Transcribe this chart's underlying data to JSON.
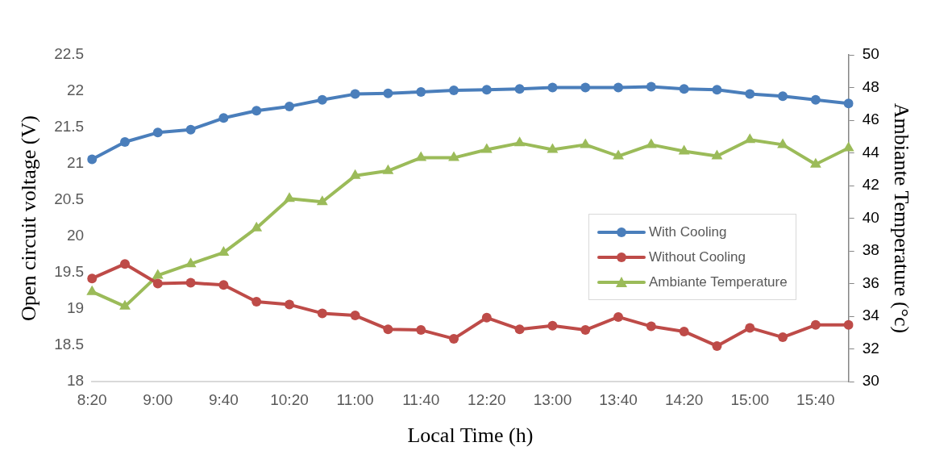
{
  "chart_data": {
    "type": "line",
    "xlabel": "Local Time (h)",
    "ylabel": "Open circuit voltage (V)",
    "y2label": "Ambiante Temperature (°c)",
    "categories": [
      "8:20",
      null,
      "9:00",
      null,
      "9:40",
      null,
      "10:20",
      null,
      "11:00",
      null,
      "11:40",
      null,
      "12:20",
      null,
      "13:00",
      null,
      "13:40",
      null,
      "14:20",
      null,
      "15:00",
      null,
      "15:40",
      null
    ],
    "series": [
      {
        "name": "With Cooling",
        "color": "#4a7ebb",
        "marker": "circle",
        "values": [
          21.06,
          21.3,
          21.43,
          21.47,
          21.63,
          21.73,
          21.79,
          21.88,
          21.96,
          21.97,
          21.99,
          22.01,
          22.02,
          22.03,
          22.05,
          22.05,
          22.05,
          22.06,
          22.03,
          22.02,
          21.96,
          21.93,
          21.88,
          21.83
        ]
      },
      {
        "name": "Without Cooling",
        "color": "#be4b48",
        "marker": "circle",
        "values": [
          19.42,
          19.62,
          19.35,
          19.36,
          19.33,
          19.1,
          19.06,
          18.94,
          18.91,
          18.72,
          18.71,
          18.59,
          18.88,
          18.72,
          18.77,
          18.71,
          18.89,
          18.76,
          18.69,
          18.49,
          18.74,
          18.61,
          18.78,
          18.78
        ]
      },
      {
        "name": "Ambiante Temperature",
        "color": "#9bbb59",
        "marker": "triangle",
        "axis": "y2",
        "values": [
          35.5,
          34.6,
          36.5,
          37.2,
          37.9,
          39.4,
          41.2,
          41.0,
          42.6,
          42.9,
          43.7,
          43.7,
          44.2,
          44.6,
          44.2,
          44.5,
          43.8,
          44.5,
          44.1,
          43.8,
          44.8,
          44.5,
          43.3,
          44.3
        ]
      }
    ],
    "ylim": [
      18,
      22.5
    ],
    "yticks": [
      18,
      18.5,
      19,
      19.5,
      20,
      20.5,
      21,
      21.5,
      22,
      22.5
    ],
    "y2lim": [
      30,
      50
    ],
    "y2ticks": [
      30,
      32,
      34,
      36,
      38,
      40,
      42,
      44,
      46,
      48,
      50
    ],
    "grid": false,
    "legend": "right",
    "line_style": "solid"
  }
}
